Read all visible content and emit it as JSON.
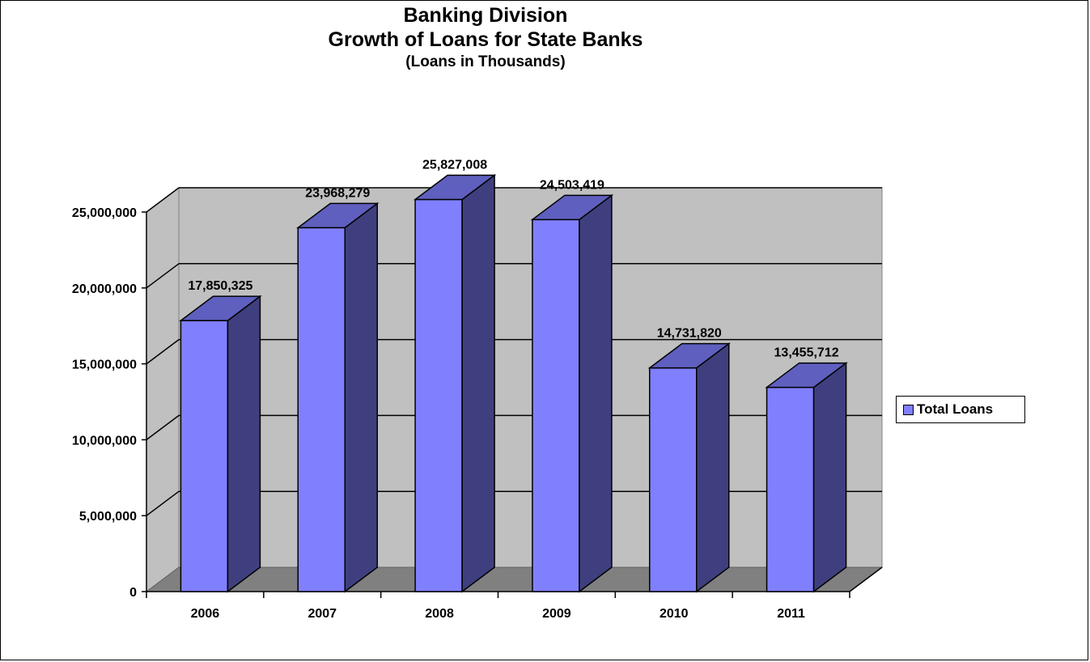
{
  "chart_data": {
    "type": "bar",
    "title": "Banking Division",
    "subtitle": "Growth of Loans for State Banks",
    "note": "(Loans in Thousands)",
    "categories": [
      "2006",
      "2007",
      "2008",
      "2009",
      "2010",
      "2011"
    ],
    "series": [
      {
        "name": "Total Loans",
        "values": [
          17850325,
          23968279,
          25827008,
          24503419,
          14731820,
          13455712
        ],
        "labels": [
          "17,850,325",
          "23,968,279",
          "25,827,008",
          "24,503,419",
          "14,731,820",
          "13,455,712"
        ]
      }
    ],
    "ylim": [
      0,
      25000000
    ],
    "yticks": [
      0,
      5000000,
      10000000,
      15000000,
      20000000,
      25000000
    ],
    "ytick_labels": [
      "0",
      "5,000,000",
      "10,000,000",
      "15,000,000",
      "20,000,000",
      "25,000,000"
    ],
    "grid": true,
    "legend_position": "right",
    "colors": {
      "bar_front": "#8080FF",
      "bar_side": "#3F3F7F",
      "bar_top": "#5F5FBF",
      "wall": "#C0C0C0",
      "floor": "#808080"
    }
  }
}
